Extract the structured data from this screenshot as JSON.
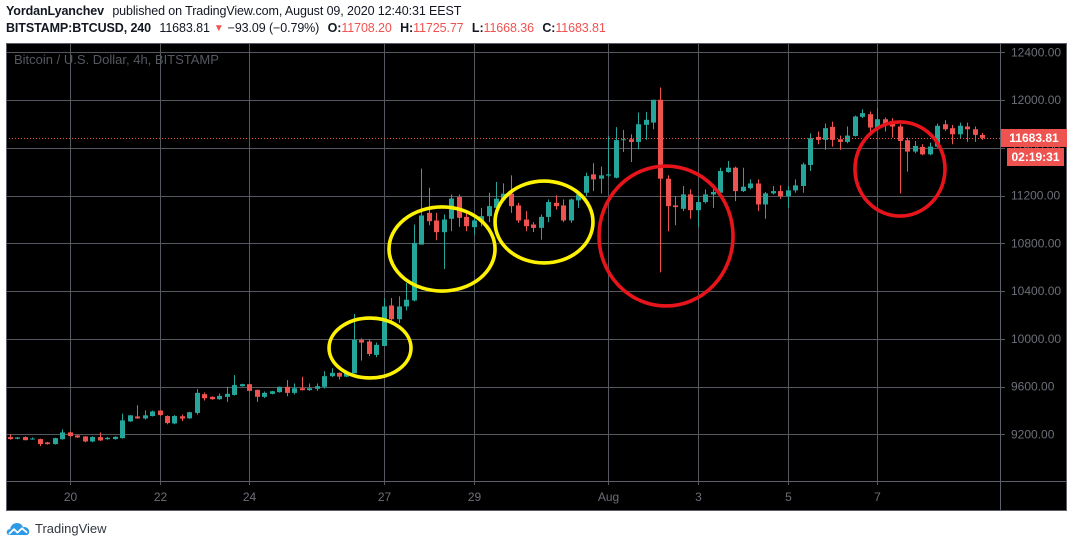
{
  "header": {
    "author": "YordanLyanchev",
    "published_text": "published on TradingView.com, August 09, 2020 12:40:31 EEST",
    "symbol": "BITSTAMP:BTCUSD, 240",
    "last_price": "11683.81",
    "change_direction_icon": "down-triangle-icon",
    "change_arrow": "▼",
    "change": "−93.09 (−0.79%)",
    "ohlc": [
      {
        "label": "O:",
        "value": "11708.20"
      },
      {
        "label": "H:",
        "value": "11725.77"
      },
      {
        "label": "L:",
        "value": "11668.36"
      },
      {
        "label": "C:",
        "value": "11683.81"
      }
    ]
  },
  "chart": {
    "watermark": "Bitcoin / U.S. Dollar, 4h, BITSTAMP",
    "price_label": "11683.81",
    "countdown_label": "02:19:31"
  },
  "footer": {
    "logo_icon": "tradingview-cloud-icon",
    "logo_text": "TradingView"
  },
  "colors": {
    "chart_bg": "#000000",
    "grid": "#55585f",
    "frame": "#5d606b",
    "axis_text": "#6c6f78",
    "up": "#26a69a",
    "down": "#ef5350",
    "price_line": "#ef5350",
    "annotation_yellow": "#fff200",
    "annotation_red": "#e8141c",
    "logo_blue": "#2e9ae6"
  },
  "chart_data": {
    "type": "bar",
    "style": "candlestick",
    "title": "Bitcoin / U.S. Dollar, 4h, BITSTAMP",
    "interval": "4h",
    "xlabel": "",
    "ylabel": "",
    "grid": true,
    "legend": "none",
    "ylim": [
      8810,
      12470
    ],
    "yticks": [
      12400,
      12000,
      11600,
      11200,
      10800,
      10400,
      10000,
      9600,
      9200
    ],
    "ytick_labels": [
      "12400.00",
      "12000.00",
      "11600.00",
      "11200.00",
      "10800.00",
      "10400.00",
      "10000.00",
      "9600.00",
      "9200.00"
    ],
    "x_ticks": [
      {
        "label": "20",
        "index": 8
      },
      {
        "label": "22",
        "index": 20
      },
      {
        "label": "24",
        "index": 32
      },
      {
        "label": "27",
        "index": 50
      },
      {
        "label": "29",
        "index": 62
      },
      {
        "label": "Aug",
        "index": 80
      },
      {
        "label": "3",
        "index": 92
      },
      {
        "label": "5",
        "index": 104
      },
      {
        "label": "7",
        "index": 116
      }
    ],
    "current_price": 11683.81,
    "candle_fields": [
      "open",
      "high",
      "low",
      "close"
    ],
    "candles": [
      [
        9178,
        9200,
        9155,
        9161
      ],
      [
        9164,
        9178,
        9160,
        9175
      ],
      [
        9178,
        9185,
        9150,
        9152
      ],
      [
        9163,
        9175,
        9155,
        9166
      ],
      [
        9161,
        9165,
        9102,
        9119
      ],
      [
        9133,
        9138,
        9115,
        9119
      ],
      [
        9119,
        9172,
        9115,
        9169
      ],
      [
        9160,
        9242,
        9155,
        9217
      ],
      [
        9217,
        9222,
        9180,
        9186
      ],
      [
        9192,
        9195,
        9170,
        9175
      ],
      [
        9183,
        9186,
        9135,
        9141
      ],
      [
        9141,
        9185,
        9135,
        9178
      ],
      [
        9178,
        9217,
        9145,
        9150
      ],
      [
        9160,
        9180,
        9155,
        9172
      ],
      [
        9161,
        9185,
        9155,
        9180
      ],
      [
        9169,
        9374,
        9165,
        9318
      ],
      [
        9309,
        9362,
        9305,
        9360
      ],
      [
        9351,
        9444,
        9330,
        9334
      ],
      [
        9334,
        9402,
        9325,
        9360
      ],
      [
        9354,
        9400,
        9350,
        9393
      ],
      [
        9400,
        9405,
        9355,
        9362
      ],
      [
        9354,
        9360,
        9285,
        9295
      ],
      [
        9292,
        9362,
        9285,
        9354
      ],
      [
        9352,
        9366,
        9313,
        9333
      ],
      [
        9335,
        9390,
        9330,
        9386
      ],
      [
        9380,
        9579,
        9366,
        9548
      ],
      [
        9537,
        9551,
        9484,
        9503
      ],
      [
        9515,
        9520,
        9490,
        9495
      ],
      [
        9495,
        9543,
        9490,
        9523
      ],
      [
        9515,
        9599,
        9473,
        9540
      ],
      [
        9531,
        9697,
        9525,
        9613
      ],
      [
        9604,
        9625,
        9600,
        9621
      ],
      [
        9621,
        9625,
        9560,
        9565
      ],
      [
        9573,
        9575,
        9473,
        9515
      ],
      [
        9515,
        9560,
        9505,
        9548
      ],
      [
        9540,
        9565,
        9535,
        9562
      ],
      [
        9554,
        9600,
        9550,
        9599
      ],
      [
        9599,
        9655,
        9520,
        9548
      ],
      [
        9548,
        9627,
        9534,
        9587
      ],
      [
        9587,
        9683,
        9568,
        9571
      ],
      [
        9571,
        9627,
        9565,
        9587
      ],
      [
        9582,
        9627,
        9565,
        9604
      ],
      [
        9599,
        9730,
        9585,
        9688
      ],
      [
        9688,
        9753,
        9680,
        9716
      ],
      [
        9716,
        9720,
        9661,
        9684
      ],
      [
        9684,
        9715,
        9680,
        9712
      ],
      [
        9712,
        10210,
        9710,
        9992
      ],
      [
        9992,
        10006,
        9818,
        9969
      ],
      [
        9978,
        9997,
        9857,
        9874
      ],
      [
        9866,
        9969,
        9846,
        9950
      ],
      [
        9941,
        10342,
        9941,
        10272
      ],
      [
        10280,
        10342,
        10154,
        10165
      ],
      [
        10165,
        10356,
        10132,
        10272
      ],
      [
        10272,
        10468,
        10238,
        10328
      ],
      [
        10322,
        10958,
        10314,
        10804
      ],
      [
        10790,
        11426,
        10790,
        11034
      ],
      [
        11056,
        11266,
        10952,
        10986
      ],
      [
        10992,
        11056,
        10826,
        10894
      ],
      [
        10894,
        11042,
        10586,
        11000
      ],
      [
        11006,
        11210,
        10902,
        11176
      ],
      [
        11188,
        11210,
        10938,
        11014
      ],
      [
        11022,
        11070,
        10902,
        10944
      ],
      [
        10936,
        11014,
        10874,
        10992
      ],
      [
        10992,
        11098,
        10944,
        11028
      ],
      [
        11028,
        11224,
        10978,
        11112
      ],
      [
        11098,
        11314,
        11084,
        11174
      ],
      [
        11174,
        11303,
        11154,
        11216
      ],
      [
        11216,
        11370,
        11056,
        11112
      ],
      [
        11118,
        11140,
        10972,
        10992
      ],
      [
        11000,
        11070,
        10902,
        10944
      ],
      [
        10958,
        10978,
        10894,
        10930
      ],
      [
        10930,
        11042,
        10832,
        11022
      ],
      [
        11022,
        11168,
        10978,
        11146
      ],
      [
        11140,
        11202,
        11084,
        11112
      ],
      [
        11118,
        11168,
        10978,
        10992
      ],
      [
        10992,
        11176,
        10972,
        11168
      ],
      [
        11160,
        11238,
        11098,
        11210
      ],
      [
        11224,
        11392,
        11196,
        11364
      ],
      [
        11378,
        11471,
        11238,
        11336
      ],
      [
        11342,
        11443,
        11218,
        11370
      ],
      [
        11368,
        11700,
        11355,
        11378
      ],
      [
        11350,
        11774,
        11345,
        11665
      ],
      [
        11665,
        11751,
        11566,
        11672
      ],
      [
        11672,
        11714,
        11482,
        11650
      ],
      [
        11650,
        11896,
        11588,
        11798
      ],
      [
        11793,
        11902,
        11667,
        11835
      ],
      [
        11812,
        12003,
        11756,
        12003
      ],
      [
        12003,
        12106,
        10557,
        11342
      ],
      [
        11342,
        11370,
        10902,
        11112
      ],
      [
        11118,
        11196,
        10952,
        11104
      ],
      [
        11090,
        11281,
        11070,
        11210
      ],
      [
        11210,
        11252,
        11006,
        11078
      ],
      [
        11078,
        11196,
        10938,
        11146
      ],
      [
        11146,
        11252,
        11134,
        11210
      ],
      [
        11210,
        11281,
        11098,
        11230
      ],
      [
        11224,
        11434,
        11210,
        11406
      ],
      [
        11398,
        11490,
        11392,
        11434
      ],
      [
        11434,
        11443,
        11154,
        11238
      ],
      [
        11238,
        11434,
        11230,
        11275
      ],
      [
        11263,
        11336,
        11252,
        11302
      ],
      [
        11302,
        11336,
        11070,
        11126
      ],
      [
        11126,
        11230,
        11006,
        11219
      ],
      [
        11219,
        11281,
        11210,
        11238
      ],
      [
        11238,
        11286,
        11174,
        11196
      ],
      [
        11196,
        11281,
        11098,
        11244
      ],
      [
        11244,
        11336,
        11224,
        11286
      ],
      [
        11281,
        11476,
        11224,
        11462
      ],
      [
        11457,
        11720,
        11406,
        11681
      ],
      [
        11692,
        11737,
        11630,
        11667
      ],
      [
        11667,
        11804,
        11583,
        11765
      ],
      [
        11776,
        11821,
        11611,
        11667
      ],
      [
        11672,
        11703,
        11583,
        11650
      ],
      [
        11650,
        11779,
        11639,
        11703
      ],
      [
        11700,
        11870,
        11695,
        11863
      ],
      [
        11860,
        11924,
        11849,
        11891
      ],
      [
        11882,
        11905,
        11728,
        11770
      ],
      [
        11770,
        11933,
        11742,
        11840
      ],
      [
        11840,
        11854,
        11737,
        11798
      ],
      [
        11826,
        11849,
        11686,
        11779
      ],
      [
        11779,
        11798,
        11219,
        11658
      ],
      [
        11664,
        11686,
        11401,
        11569
      ],
      [
        11569,
        11658,
        11555,
        11616
      ],
      [
        11608,
        11630,
        11538,
        11546
      ],
      [
        11546,
        11644,
        11538,
        11611
      ],
      [
        11611,
        11804,
        11602,
        11785
      ],
      [
        11798,
        11832,
        11742,
        11756
      ],
      [
        11765,
        11793,
        11630,
        11714
      ],
      [
        11714,
        11812,
        11681,
        11785
      ],
      [
        11779,
        11812,
        11650,
        11756
      ],
      [
        11756,
        11779,
        11650,
        11709
      ],
      [
        11708.2,
        11725.77,
        11668.36,
        11683.81
      ]
    ],
    "annotations": [
      {
        "shape": "ellipse",
        "color": "yellow",
        "center_index": 48.15,
        "center_price": 9924,
        "rx_bars": 5.48,
        "ry_price": 251
      },
      {
        "shape": "ellipse",
        "color": "yellow",
        "center_index": 57.78,
        "center_price": 10753,
        "rx_bars": 7.09,
        "ry_price": 352
      },
      {
        "shape": "ellipse",
        "color": "yellow",
        "center_index": 71.42,
        "center_price": 10979,
        "rx_bars": 6.55,
        "ry_price": 343
      },
      {
        "shape": "ellipse",
        "color": "red",
        "center_index": 87.74,
        "center_price": 10862,
        "rx_bars": 8.96,
        "ry_price": 586
      },
      {
        "shape": "ellipse",
        "color": "red",
        "center_index": 119.03,
        "center_price": 11423,
        "rx_bars": 6.02,
        "ry_price": 394
      }
    ]
  }
}
